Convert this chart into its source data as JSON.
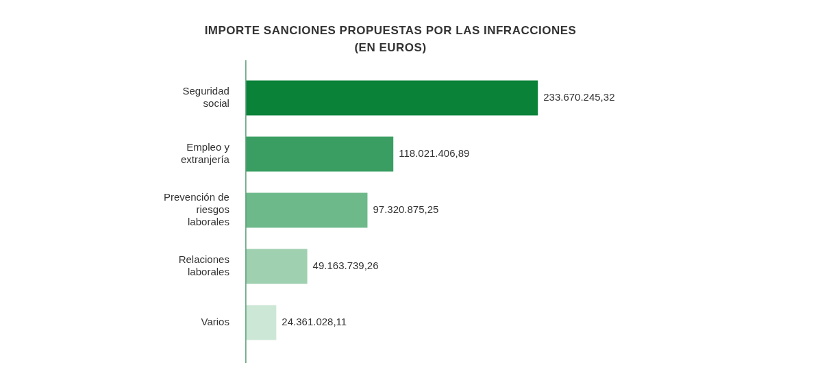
{
  "chart_data": {
    "type": "bar",
    "orientation": "horizontal",
    "title": "IMPORTE SANCIONES PROPUESTAS POR LAS INFRACCIONES\n(EN EUROS)",
    "categories": [
      "Seguridad social",
      "Empleo y extranjería",
      "Prevención de riesgos laborales",
      "Relaciones laborales",
      "Varios"
    ],
    "values": [
      233670245.32,
      118021406.89,
      97320875.25,
      49163739.26,
      24361028.11
    ],
    "colors": [
      "#0a8238",
      "#3a9e62",
      "#6db98a",
      "#9fd0b0",
      "#cde7d6"
    ],
    "value_labels": [
      "233.670.245,32",
      "118.021.406,89",
      "97.320.875,25",
      "49.163.739,26",
      "24.361.028,11"
    ],
    "tick_labels": "y",
    "grid": false,
    "legend": false
  }
}
